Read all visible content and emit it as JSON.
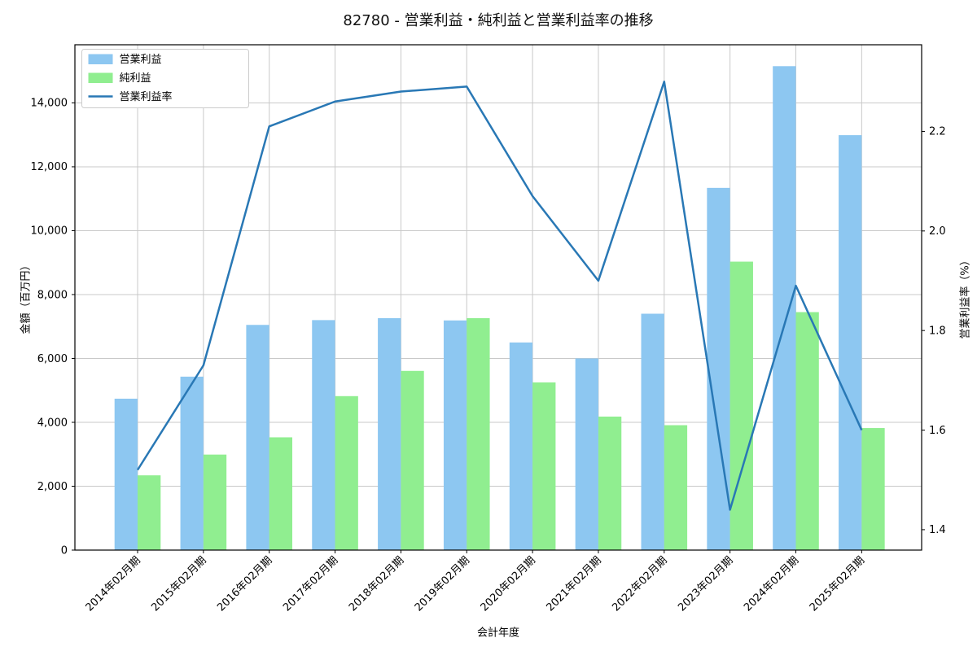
{
  "chart_data": {
    "type": "bar+line",
    "title": "82780 - 営業利益・純利益と営業利益率の推移",
    "xlabel": "会計年度",
    "ylabel_left": "金額（百万円）",
    "ylabel_right": "営業利益率（%）",
    "categories": [
      "2014年02月期",
      "2015年02月期",
      "2016年02月期",
      "2017年02月期",
      "2018年02月期",
      "2019年02月期",
      "2020年02月期",
      "2021年02月期",
      "2022年02月期",
      "2023年02月期",
      "2024年02月期",
      "2025年02月期"
    ],
    "series": [
      {
        "name": "営業利益",
        "type": "bar",
        "axis": "left",
        "color": "#8dc7f1",
        "values": [
          4740,
          5430,
          7050,
          7200,
          7260,
          7190,
          6500,
          6000,
          7400,
          11340,
          15150,
          12990
        ]
      },
      {
        "name": "純利益",
        "type": "bar",
        "axis": "left",
        "color": "#90ee90",
        "values": [
          2340,
          2990,
          3530,
          4820,
          5610,
          7260,
          5250,
          4180,
          3910,
          9030,
          7450,
          3820
        ]
      },
      {
        "name": "営業利益率",
        "type": "line",
        "axis": "right",
        "color": "#2978b5",
        "values": [
          1.52,
          1.73,
          2.21,
          2.26,
          2.28,
          2.29,
          2.07,
          1.9,
          2.3,
          1.44,
          1.89,
          1.6
        ]
      }
    ],
    "left_axis": {
      "tick_labels": [
        "0",
        "2,000",
        "4,000",
        "6,000",
        "8,000",
        "10,000",
        "12,000",
        "14,000"
      ],
      "tick_values": [
        0,
        2000,
        4000,
        6000,
        8000,
        10000,
        12000,
        14000
      ],
      "lim": [
        0,
        15820
      ]
    },
    "right_axis": {
      "tick_labels": [
        "1.4",
        "1.6",
        "1.8",
        "2.0",
        "2.2"
      ],
      "tick_values": [
        1.4,
        1.6,
        1.8,
        2.0,
        2.2
      ],
      "lim": [
        1.359,
        2.374
      ]
    },
    "legend": {
      "position": "upper-left",
      "entries": [
        "営業利益",
        "純利益",
        "営業利益率"
      ]
    },
    "grid": true,
    "colors": {
      "grid": "#c9c9c9",
      "spine": "#000000",
      "legend_border": "#cccccc",
      "background": "#ffffff"
    }
  }
}
